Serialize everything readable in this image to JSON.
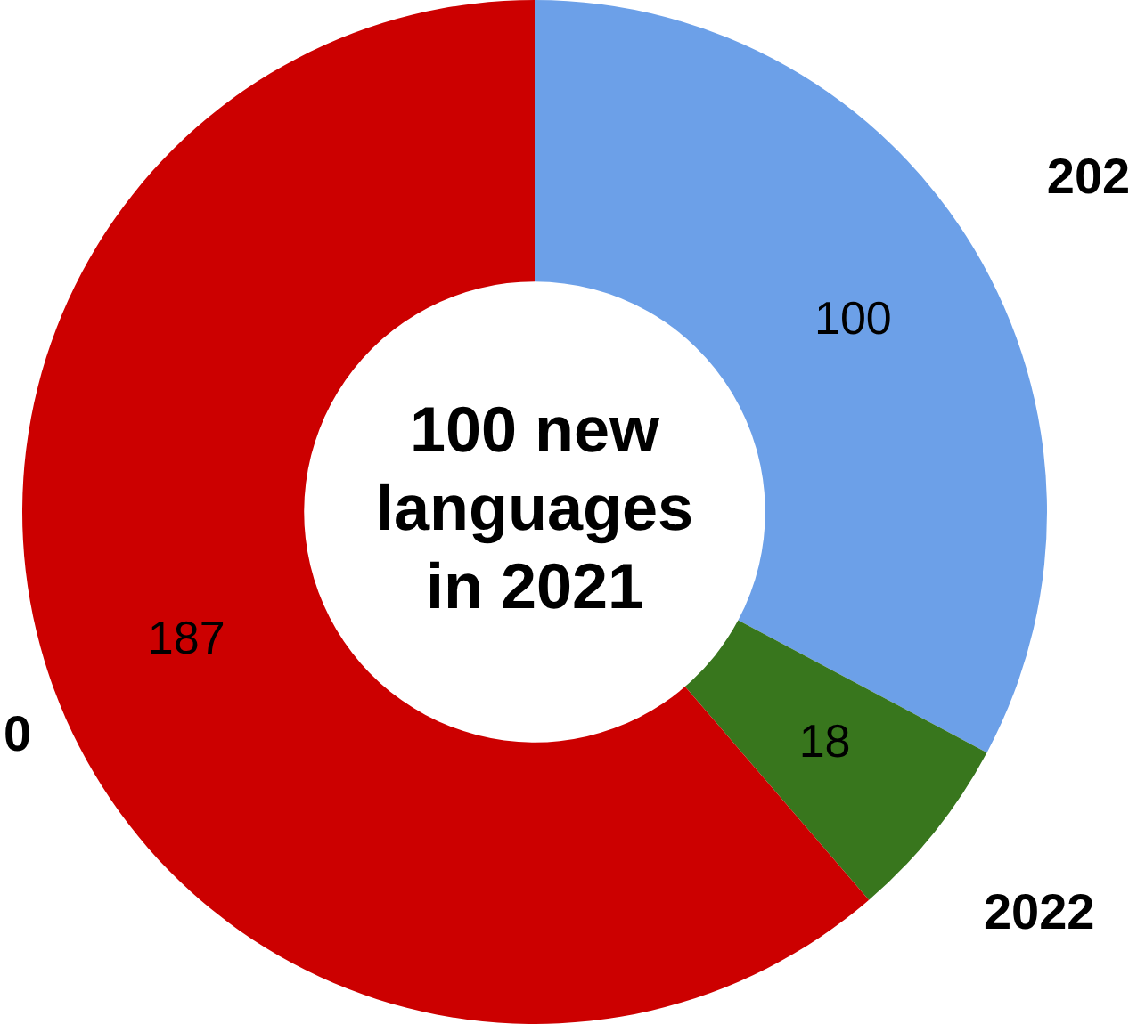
{
  "chart_data": {
    "type": "donut",
    "title": "100 new languages in 2021",
    "categories": [
      "202",
      "2022",
      "0"
    ],
    "values": [
      100,
      18,
      187
    ],
    "colors": [
      "#6ca0e8",
      "#38761d",
      "#cc0000"
    ],
    "data_labels": true,
    "legend": false
  }
}
